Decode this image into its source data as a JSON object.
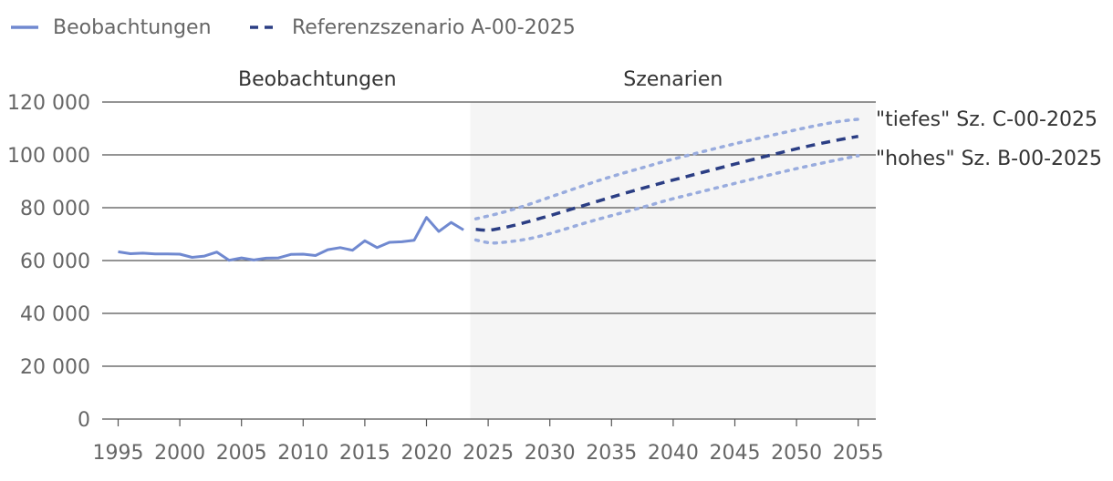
{
  "chart_data": {
    "type": "line",
    "legend": {
      "position": "top-left",
      "items": [
        {
          "label": "Beobachtungen",
          "color": "#7089d0",
          "style": "solid"
        },
        {
          "label": "Referenzszenario A-00-2025",
          "color": "#2b3e84",
          "style": "dashed"
        }
      ]
    },
    "panels": [
      {
        "label": "Beobachtungen"
      },
      {
        "label": "Szenarien",
        "shaded": true,
        "shade_color": "#f5f5f5",
        "x_start": 2024
      }
    ],
    "x_ticks": [
      "1995",
      "2000",
      "2005",
      "2010",
      "2015",
      "2020",
      "2025",
      "2030",
      "2035",
      "2040",
      "2045",
      "2050",
      "2055"
    ],
    "x_range": [
      1994,
      2056.5
    ],
    "y_range": [
      0,
      120000
    ],
    "y_ticks": [
      {
        "value": 0,
        "label": "0"
      },
      {
        "value": 20000,
        "label": "20 000"
      },
      {
        "value": 40000,
        "label": "40 000"
      },
      {
        "value": 60000,
        "label": "60 000"
      },
      {
        "value": 80000,
        "label": "80 000"
      },
      {
        "value": 100000,
        "label": "100 000"
      },
      {
        "value": 120000,
        "label": "120 000"
      }
    ],
    "series": [
      {
        "name": "Beobachtungen",
        "color": "#7089d0",
        "style": "solid",
        "x": [
          1995,
          1996,
          1997,
          1998,
          1999,
          2000,
          2001,
          2002,
          2003,
          2004,
          2005,
          2006,
          2007,
          2008,
          2009,
          2010,
          2011,
          2012,
          2013,
          2014,
          2015,
          2016,
          2017,
          2018,
          2019,
          2020,
          2021,
          2022,
          2023
        ],
        "values": [
          63300,
          62600,
          62800,
          62500,
          62500,
          62400,
          61200,
          61700,
          63200,
          60100,
          61000,
          60200,
          60900,
          61000,
          62300,
          62400,
          61900,
          64100,
          64900,
          63900,
          67500,
          64900,
          66900,
          67100,
          67700,
          76300,
          71000,
          74400,
          71600
        ]
      },
      {
        "name": "Referenzszenario A-00-2025",
        "color": "#2b3e84",
        "style": "dashed",
        "x": [
          2024,
          2025,
          2026,
          2027,
          2028,
          2030,
          2032,
          2035,
          2038,
          2040,
          2045,
          2050,
          2053,
          2055
        ],
        "values": [
          71800,
          71500,
          72200,
          73200,
          74400,
          77000,
          79800,
          84000,
          88000,
          90500,
          96500,
          102300,
          105300,
          107000
        ]
      },
      {
        "name": "\"tiefes\" Sz. C-00-2025",
        "color": "#99acde",
        "style": "dotted",
        "x": [
          2024,
          2026,
          2028,
          2030,
          2033,
          2035,
          2038,
          2040,
          2045,
          2050,
          2053,
          2055
        ],
        "values": [
          75800,
          78000,
          80800,
          84000,
          88800,
          91800,
          95800,
          98400,
          104200,
          109500,
          112300,
          113500
        ]
      },
      {
        "name": "\"hohes\" Sz. B-00-2025",
        "color": "#99acde",
        "style": "dotted",
        "x": [
          2024,
          2025,
          2026,
          2028,
          2030,
          2033,
          2035,
          2038,
          2040,
          2045,
          2050,
          2055
        ],
        "values": [
          67800,
          66800,
          66800,
          68000,
          70200,
          74400,
          77000,
          80800,
          83400,
          89200,
          94800,
          99700
        ]
      }
    ],
    "annotations": [
      {
        "text": "\"tiefes\" Sz. C-00-2025",
        "series": 2
      },
      {
        "text": "\"hohes\" Sz. B-00-2025",
        "series": 3
      }
    ]
  }
}
